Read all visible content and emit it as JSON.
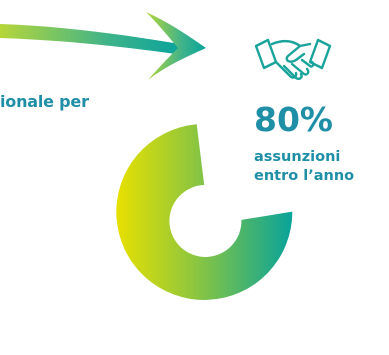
{
  "headline": "ionale per",
  "stat": {
    "value": "80%",
    "label_line1": "assunzioni",
    "label_line2": "entro l’anno",
    "percent": 80
  },
  "icons": {
    "arrow": "swoosh-arrow-icon",
    "handshake": "handshake-icon"
  },
  "colors": {
    "accent": "#1f8ea7",
    "gradient_start": "#e8e000",
    "gradient_end": "#08a39a"
  }
}
